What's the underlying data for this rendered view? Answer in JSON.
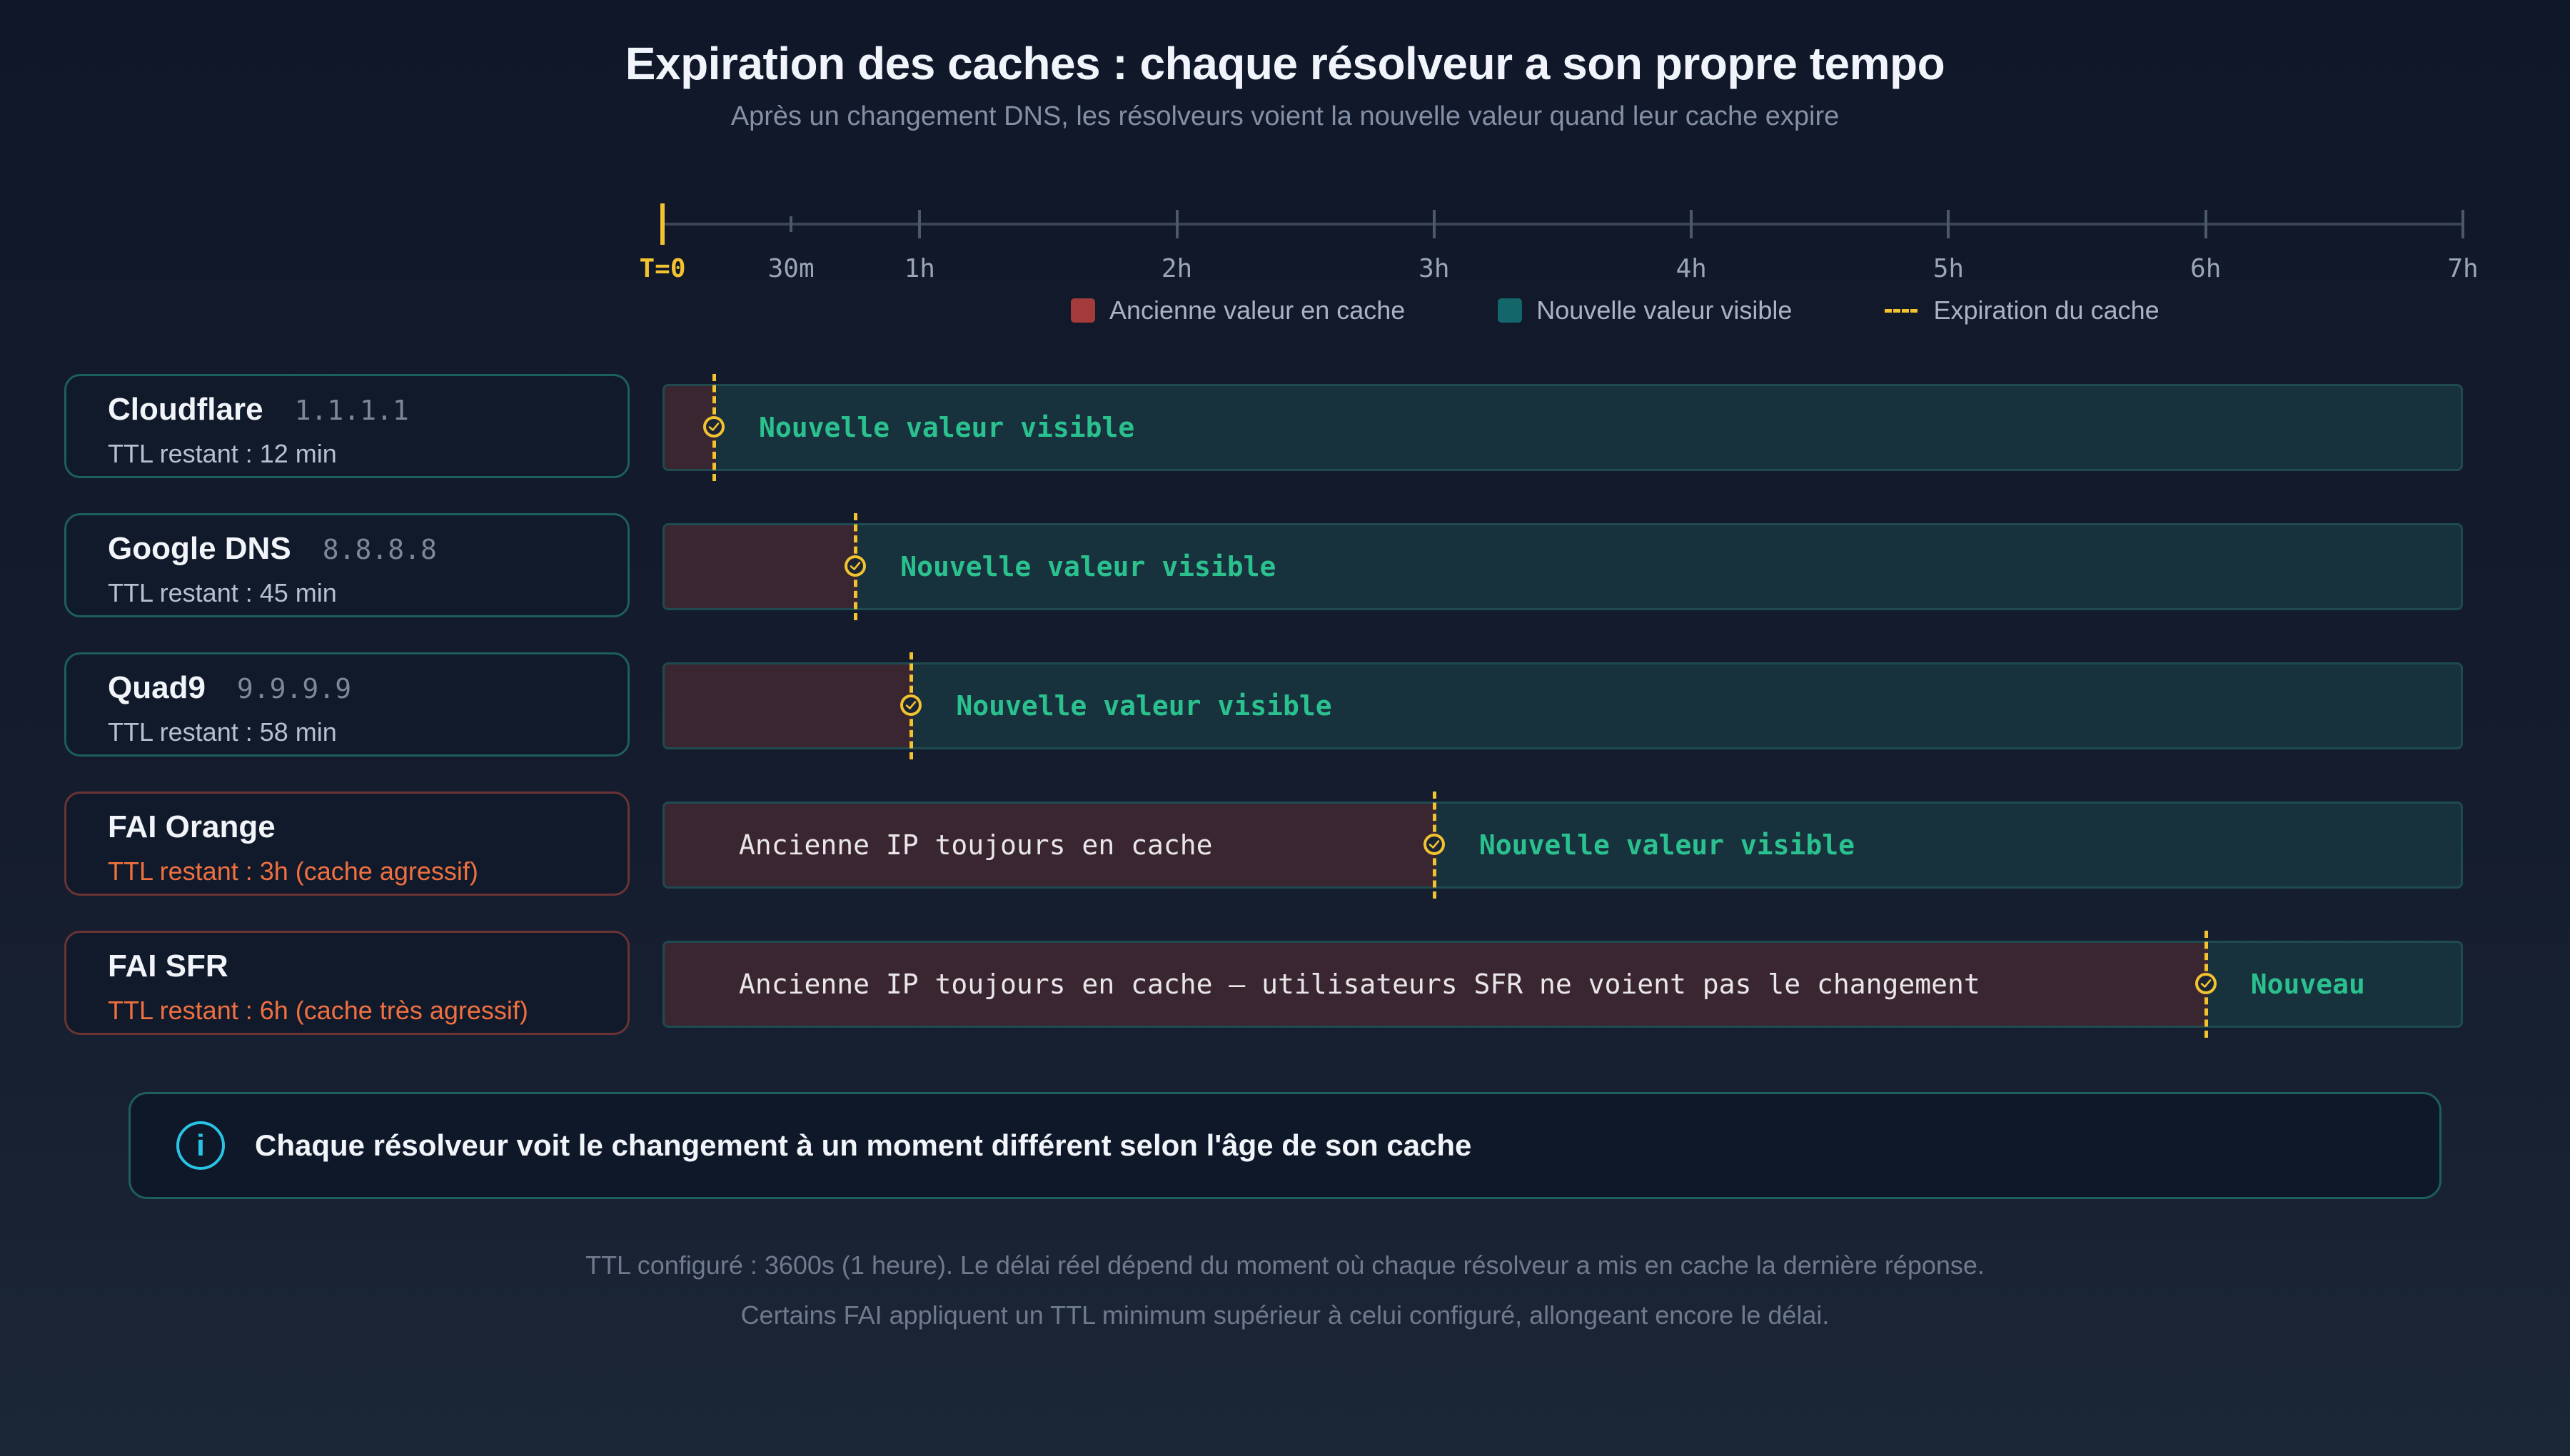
{
  "title": "Expiration des caches : chaque résolveur a son propre tempo",
  "subtitle": "Après un changement DNS, les résolveurs voient la nouvelle valeur quand leur cache expire",
  "axis": {
    "max_hours": 7,
    "ticks": [
      {
        "label": "T=0",
        "hours": 0,
        "kind": "zero"
      },
      {
        "label": "30m",
        "hours": 0.5,
        "kind": "minor"
      },
      {
        "label": "1h",
        "hours": 1,
        "kind": "major"
      },
      {
        "label": "2h",
        "hours": 2,
        "kind": "major"
      },
      {
        "label": "3h",
        "hours": 3,
        "kind": "major"
      },
      {
        "label": "4h",
        "hours": 4,
        "kind": "major"
      },
      {
        "label": "5h",
        "hours": 5,
        "kind": "major"
      },
      {
        "label": "6h",
        "hours": 6,
        "kind": "major"
      },
      {
        "label": "7h",
        "hours": 7,
        "kind": "major"
      }
    ]
  },
  "legend": {
    "old": "Ancienne valeur en cache",
    "new": "Nouvelle valeur visible",
    "expire": "Expiration du cache"
  },
  "colors": {
    "old": "#a33b3b",
    "new": "#13666a",
    "expire": "#f2c230",
    "healthy_border": "#1d5f5b",
    "warn_border": "#6a3434",
    "warn_text": "#f0703f",
    "new_text": "#2bc18f"
  },
  "resolvers": [
    {
      "name": "Cloudflare",
      "ip": "1.1.1.1",
      "ttl": "TTL restant : 12 min",
      "expire_hours": 0.2,
      "warn": false,
      "old_label": "",
      "new_label": "Nouvelle valeur visible"
    },
    {
      "name": "Google DNS",
      "ip": "8.8.8.8",
      "ttl": "TTL restant : 45 min",
      "expire_hours": 0.75,
      "warn": false,
      "old_label": "",
      "new_label": "Nouvelle valeur visible"
    },
    {
      "name": "Quad9",
      "ip": "9.9.9.9",
      "ttl": "TTL restant : 58 min",
      "expire_hours": 0.967,
      "warn": false,
      "old_label": "",
      "new_label": "Nouvelle valeur visible"
    },
    {
      "name": "FAI Orange",
      "ip": "",
      "ttl": "TTL restant : 3h (cache agressif)",
      "expire_hours": 3,
      "warn": true,
      "old_label": "Ancienne IP toujours en cache",
      "new_label": "Nouvelle valeur visible"
    },
    {
      "name": "FAI SFR",
      "ip": "",
      "ttl": "TTL restant : 6h (cache très agressif)",
      "expire_hours": 6,
      "warn": true,
      "old_label": "Ancienne IP toujours en cache — utilisateurs SFR ne voient pas le changement",
      "new_label": "Nouveau"
    }
  ],
  "info": "Chaque résolveur voit le changement à un moment différent selon l'âge de son cache",
  "footnotes": [
    "TTL configuré : 3600s (1 heure). Le délai réel dépend du moment où chaque résolveur a mis en cache la dernière réponse.",
    "Certains FAI appliquent un TTL minimum supérieur à celui configuré, allongeant encore le délai."
  ]
}
